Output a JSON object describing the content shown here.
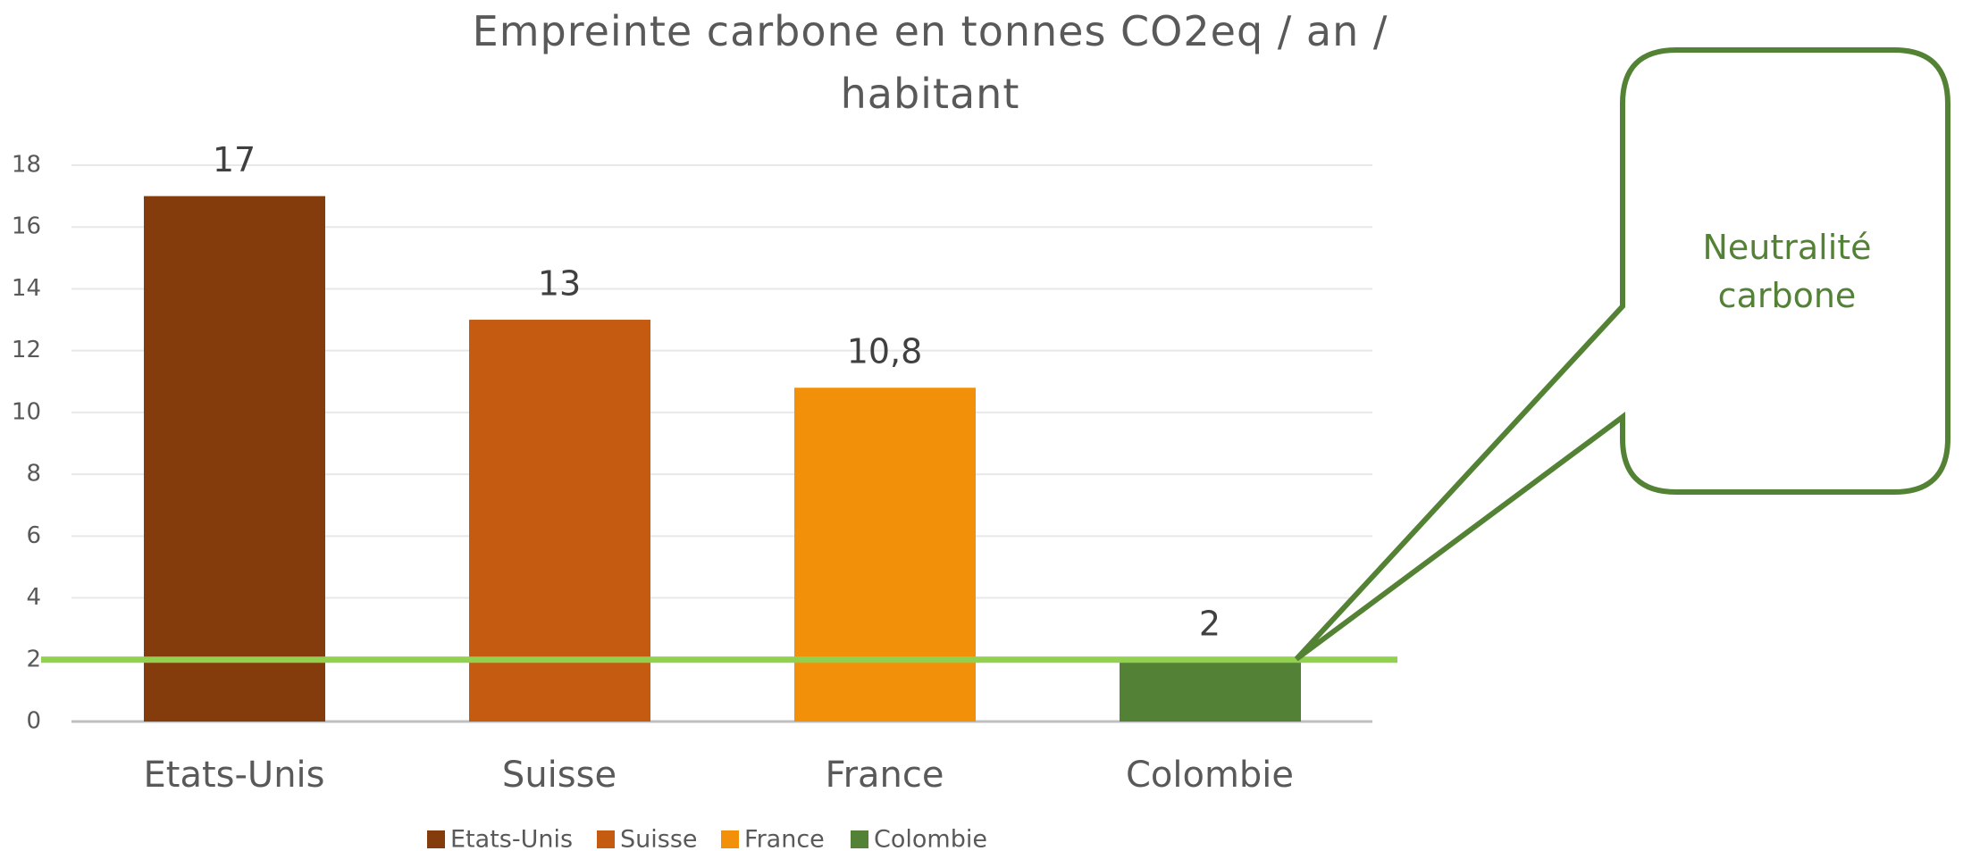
{
  "chart_data": {
    "type": "bar",
    "title": "Empreinte carbone en tonnes CO2eq / an / habitant",
    "categories": [
      "Etats-Unis",
      "Suisse",
      "France",
      "Colombie"
    ],
    "values": [
      17,
      13,
      10.8,
      2
    ],
    "value_labels": [
      "17",
      "13",
      "10,8",
      "2"
    ],
    "colors": [
      "#843c0c",
      "#c55a11",
      "#f39009",
      "#538135"
    ],
    "ylim": [
      0,
      18
    ],
    "yticks": [
      0,
      2,
      4,
      6,
      8,
      10,
      12,
      14,
      16,
      18
    ],
    "grid": true,
    "legend": "bottom",
    "reference_line": {
      "value": 2,
      "color": "#92d050"
    },
    "annotation": "Neutralité carbone"
  }
}
